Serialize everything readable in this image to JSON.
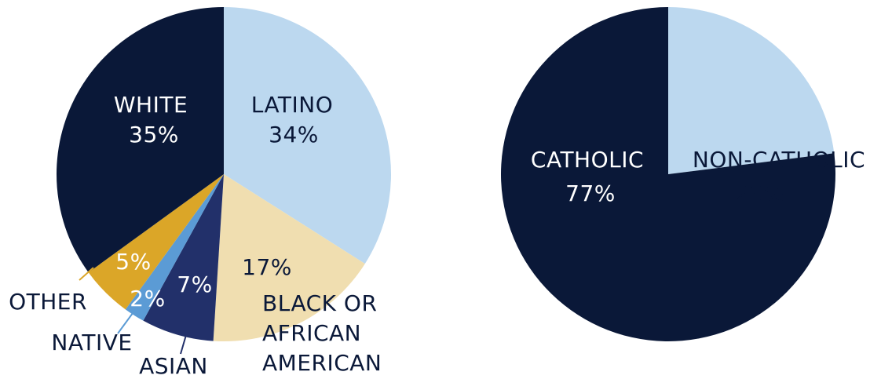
{
  "colors": {
    "navy": "#0a1838",
    "light_blue": "#bcd8ef",
    "cream": "#f0deb0",
    "indigo": "#22306a",
    "sky_blue": "#5b9bd5",
    "gold": "#dba628",
    "white": "#ffffff"
  },
  "chart_data": [
    {
      "type": "pie",
      "title": "",
      "slices": [
        {
          "label": "LATINO",
          "value": 34,
          "value_label": "34%",
          "color": "#bcd8ef"
        },
        {
          "label": "BLACK OR AFRICAN AMERICAN",
          "label_lines": [
            "BLACK OR",
            "AFRICAN",
            "AMERICAN"
          ],
          "value": 17,
          "value_label": "17%",
          "color": "#f0deb0"
        },
        {
          "label": "ASIAN",
          "value": 7,
          "value_label": "7%",
          "color": "#22306a"
        },
        {
          "label": "NATIVE",
          "value": 2,
          "value_label": "2%",
          "color": "#5b9bd5"
        },
        {
          "label": "OTHER",
          "value": 5,
          "value_label": "5%",
          "color": "#dba628"
        },
        {
          "label": "WHITE",
          "value": 35,
          "value_label": "35%",
          "color": "#0a1838"
        }
      ]
    },
    {
      "type": "pie",
      "title": "",
      "slices": [
        {
          "label": "NON-CATHOLIC",
          "value": 23,
          "value_label": "23%",
          "color": "#bcd8ef"
        },
        {
          "label": "CATHOLIC",
          "value": 77,
          "value_label": "77%",
          "color": "#0a1838"
        }
      ]
    }
  ]
}
